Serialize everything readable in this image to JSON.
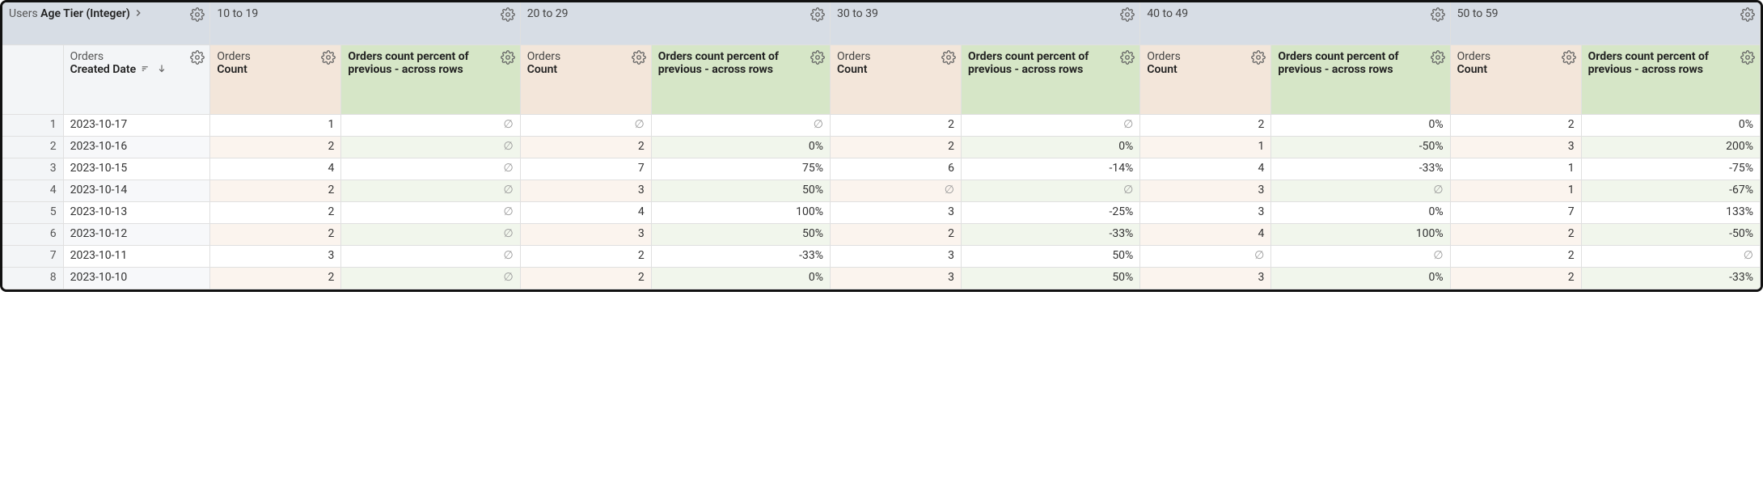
{
  "pivot": {
    "label_prefix": "Users ",
    "label_bold": "Age Tier (Integer)",
    "values": [
      "10 to 19",
      "20 to 29",
      "30 to 39",
      "40 to 49",
      "50 to 59"
    ]
  },
  "headers": {
    "date_prefix": "Orders",
    "date_bold": "Created Date",
    "count_prefix": "Orders",
    "count_bold": "Count",
    "pct_bold": "Orders count percent of previous - across rows"
  },
  "null_glyph": "∅",
  "rows": [
    {
      "n": 1,
      "date": "2023-10-17",
      "cells": [
        {
          "cnt": "1",
          "pct": "∅"
        },
        {
          "cnt": "∅",
          "pct": "∅"
        },
        {
          "cnt": "2",
          "pct": "∅"
        },
        {
          "cnt": "2",
          "pct": "0%"
        },
        {
          "cnt": "2",
          "pct": "0%"
        }
      ]
    },
    {
      "n": 2,
      "date": "2023-10-16",
      "cells": [
        {
          "cnt": "2",
          "pct": "∅"
        },
        {
          "cnt": "2",
          "pct": "0%"
        },
        {
          "cnt": "2",
          "pct": "0%"
        },
        {
          "cnt": "1",
          "pct": "-50%"
        },
        {
          "cnt": "3",
          "pct": "200%"
        }
      ]
    },
    {
      "n": 3,
      "date": "2023-10-15",
      "cells": [
        {
          "cnt": "4",
          "pct": "∅"
        },
        {
          "cnt": "7",
          "pct": "75%"
        },
        {
          "cnt": "6",
          "pct": "-14%"
        },
        {
          "cnt": "4",
          "pct": "-33%"
        },
        {
          "cnt": "1",
          "pct": "-75%"
        }
      ]
    },
    {
      "n": 4,
      "date": "2023-10-14",
      "cells": [
        {
          "cnt": "2",
          "pct": "∅"
        },
        {
          "cnt": "3",
          "pct": "50%"
        },
        {
          "cnt": "∅",
          "pct": "∅"
        },
        {
          "cnt": "3",
          "pct": "∅"
        },
        {
          "cnt": "1",
          "pct": "-67%"
        }
      ]
    },
    {
      "n": 5,
      "date": "2023-10-13",
      "cells": [
        {
          "cnt": "2",
          "pct": "∅"
        },
        {
          "cnt": "4",
          "pct": "100%"
        },
        {
          "cnt": "3",
          "pct": "-25%"
        },
        {
          "cnt": "3",
          "pct": "0%"
        },
        {
          "cnt": "7",
          "pct": "133%"
        }
      ]
    },
    {
      "n": 6,
      "date": "2023-10-12",
      "cells": [
        {
          "cnt": "2",
          "pct": "∅"
        },
        {
          "cnt": "3",
          "pct": "50%"
        },
        {
          "cnt": "2",
          "pct": "-33%"
        },
        {
          "cnt": "4",
          "pct": "100%"
        },
        {
          "cnt": "2",
          "pct": "-50%"
        }
      ]
    },
    {
      "n": 7,
      "date": "2023-10-11",
      "cells": [
        {
          "cnt": "3",
          "pct": "∅"
        },
        {
          "cnt": "2",
          "pct": "-33%"
        },
        {
          "cnt": "3",
          "pct": "50%"
        },
        {
          "cnt": "∅",
          "pct": "∅"
        },
        {
          "cnt": "2",
          "pct": "∅"
        }
      ]
    },
    {
      "n": 8,
      "date": "2023-10-10",
      "cells": [
        {
          "cnt": "2",
          "pct": "∅"
        },
        {
          "cnt": "2",
          "pct": "0%"
        },
        {
          "cnt": "3",
          "pct": "50%"
        },
        {
          "cnt": "3",
          "pct": "0%"
        },
        {
          "cnt": "2",
          "pct": "-33%"
        }
      ]
    }
  ],
  "colors": {
    "pivot_bg": "#d7dde5",
    "date_hdr_bg": "#f3f5f7",
    "count_hdr_bg": "#f3e6da",
    "pct_hdr_bg": "#d6e6c7",
    "count_even_bg": "#fbf4ee",
    "pct_even_bg": "#f1f6ec",
    "border_color": "#111111"
  }
}
